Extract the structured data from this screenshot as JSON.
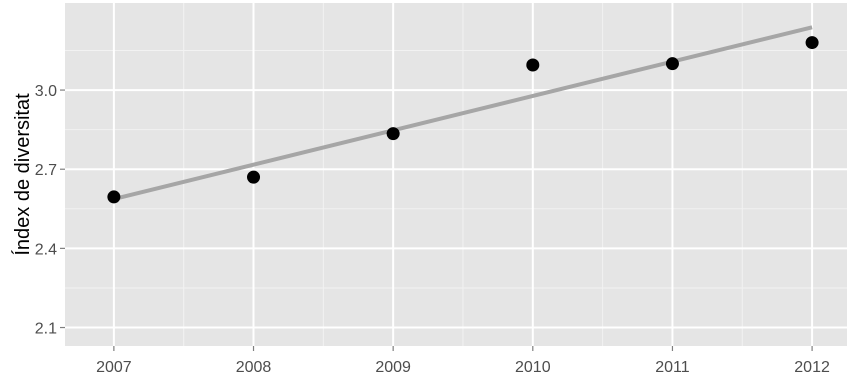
{
  "chart_data": {
    "type": "scatter",
    "title": "",
    "xlabel": "",
    "ylabel": "Índex de diversitat",
    "x": [
      2007,
      2008,
      2009,
      2010,
      2011,
      2012
    ],
    "y": [
      2.595,
      2.67,
      2.835,
      3.095,
      3.1,
      3.18
    ],
    "trendline": {
      "type": "linear",
      "x": [
        2007,
        2012
      ],
      "y": [
        2.587,
        3.238
      ]
    },
    "xlim": [
      2006.65,
      2012.25
    ],
    "ylim": [
      2.03,
      3.33
    ],
    "x_ticks": [
      "2007",
      "2008",
      "2009",
      "2010",
      "2011",
      "2012"
    ],
    "y_ticks": [
      "2.1",
      "2.4",
      "2.7",
      "3.0"
    ],
    "y_tick_values": [
      2.1,
      2.4,
      2.7,
      3.0
    ],
    "grid": true,
    "colors": {
      "panel": "#e5e5e5",
      "grid_major": "#ffffff",
      "grid_minor": "#f2f2f2",
      "point": "#000000",
      "trendline": "#a6a6a6",
      "tick_text": "#4d4d4d"
    }
  }
}
